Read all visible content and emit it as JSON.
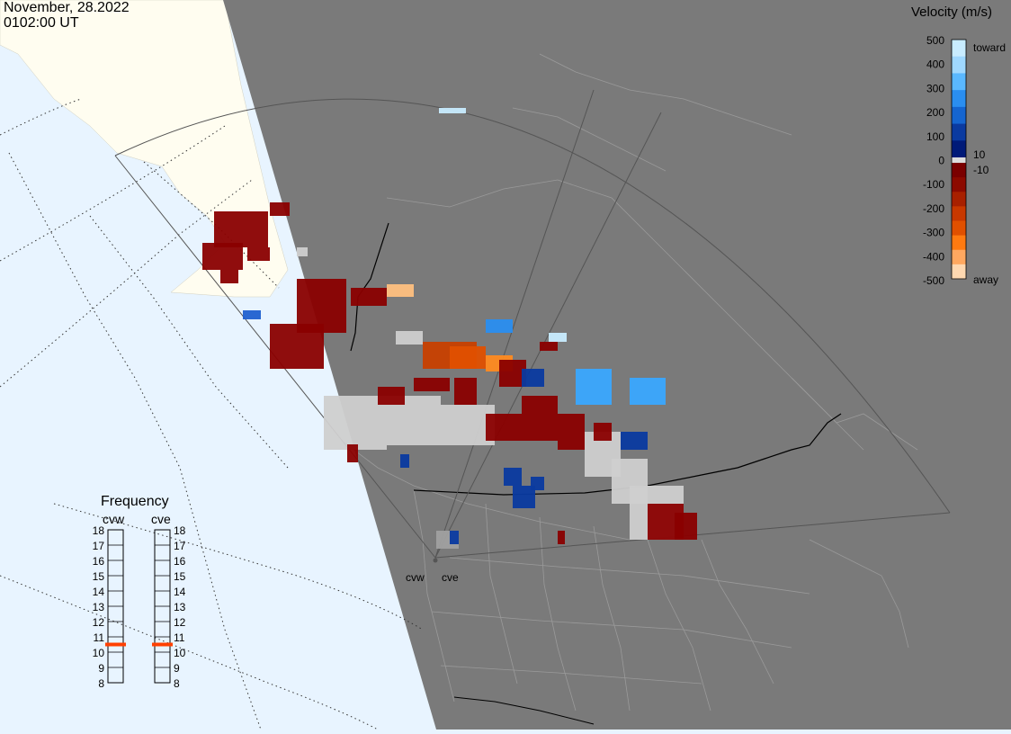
{
  "header": {
    "date": "November, 28.2022",
    "time": "0102:00 UT"
  },
  "velocity_scale": {
    "title": "Velocity (m/s)",
    "ticks": [
      "500",
      "400",
      "300",
      "200",
      "100",
      "0",
      "-100",
      "-200",
      "-300",
      "-400",
      "-500"
    ],
    "pos_label_10": "10",
    "neg_label_10": "-10",
    "toward_label": "toward",
    "away_label": "away",
    "colors_toward": [
      "#c8ecff",
      "#9fd8ff",
      "#5ab8ff",
      "#2a8ef0",
      "#1565d0",
      "#0a3aa0",
      "#001a78"
    ],
    "colors_away": [
      "#7a0000",
      "#8c0a00",
      "#a82000",
      "#c83800",
      "#e05000",
      "#ff7a10",
      "#ffa860",
      "#ffd8b0"
    ]
  },
  "frequency_panel": {
    "title": "Frequency",
    "radar_west": "cvw",
    "radar_east": "cve",
    "levels": [
      "18",
      "17",
      "16",
      "15",
      "14",
      "13",
      "12",
      "11",
      "10",
      "9",
      "8"
    ],
    "cvw_freq_mhz": 10.5,
    "cve_freq_mhz": 10.5,
    "marker_color": "#ff4000"
  },
  "radar_sites": {
    "west": "cvw",
    "east": "cve"
  },
  "map_colors": {
    "ocean": "#e8f4ff",
    "land_sunlit": "#fffdf0",
    "night": "#7a7a7a",
    "ground_scatter": "#cfcfcf"
  }
}
